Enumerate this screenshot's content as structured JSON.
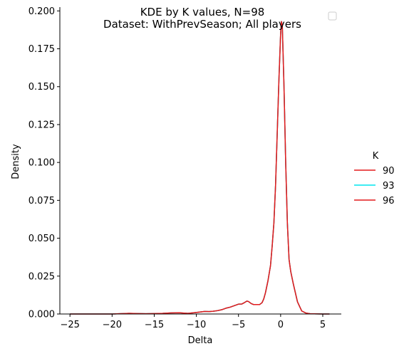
{
  "chart_data": {
    "type": "line",
    "title": "KDE by K values, N=98",
    "subtitle": "Dataset: WithPrevSeason; All players",
    "xlabel": "Delta",
    "ylabel": "Density",
    "xlim": [
      -26.2,
      7.2
    ],
    "ylim": [
      0,
      0.2025
    ],
    "xticks": [
      -25,
      -20,
      -15,
      -10,
      -5,
      0,
      5
    ],
    "yticks": [
      0.0,
      0.025,
      0.05,
      0.075,
      0.1,
      0.125,
      0.15,
      0.175,
      0.2
    ],
    "xtick_labels": [
      "−25",
      "−20",
      "−15",
      "−10",
      "−5",
      "0",
      "5"
    ],
    "ytick_labels": [
      "0.000",
      "0.025",
      "0.050",
      "0.075",
      "0.100",
      "0.125",
      "0.150",
      "0.175",
      "0.200"
    ],
    "grid": false,
    "legend": {
      "title": "K",
      "placement": "outside-right",
      "entries": [
        {
          "label": "90",
          "color": "#e41a1c"
        },
        {
          "label": "93",
          "color": "#00e5ee"
        },
        {
          "label": "96",
          "color": "#e41a1c"
        }
      ]
    },
    "series": [
      {
        "name": "90",
        "color": "#e41a1c",
        "x": [
          -25,
          -22,
          -20,
          -18,
          -16,
          -14,
          -13,
          -12,
          -11,
          -10,
          -9,
          -8.5,
          -8,
          -7.5,
          -7,
          -6.5,
          -6,
          -5.5,
          -5,
          -4.6,
          -4.3,
          -4.0,
          -3.8,
          -3.5,
          -3.2,
          -3.0,
          -2.8,
          -2.5,
          -2.2,
          -2.0,
          -1.8,
          -1.5,
          -1.2,
          -1.0,
          -0.8,
          -0.6,
          -0.4,
          -0.2,
          0.0,
          0.1,
          0.2,
          0.3,
          0.4,
          0.6,
          0.8,
          1.0,
          1.2,
          1.5,
          2.0,
          2.5,
          3.0,
          3.5,
          4.0,
          5.0,
          5.8
        ],
        "y": [
          0.0,
          0.0,
          0.0,
          0.0004,
          0.0002,
          0.0004,
          0.0007,
          0.0008,
          0.0004,
          0.001,
          0.0017,
          0.0016,
          0.0018,
          0.0022,
          0.0028,
          0.0038,
          0.0045,
          0.0055,
          0.0065,
          0.0066,
          0.0075,
          0.0085,
          0.0082,
          0.0069,
          0.0062,
          0.0062,
          0.0062,
          0.0062,
          0.0075,
          0.01,
          0.014,
          0.022,
          0.032,
          0.045,
          0.06,
          0.085,
          0.12,
          0.155,
          0.185,
          0.193,
          0.19,
          0.17,
          0.15,
          0.1,
          0.06,
          0.036,
          0.028,
          0.02,
          0.008,
          0.002,
          0.0006,
          0.0002,
          0.0001,
          0.0,
          0.0
        ]
      },
      {
        "name": "93",
        "color": "#00e5ee",
        "x": [
          -25,
          -22,
          -20,
          -18,
          -16,
          -14,
          -13,
          -12,
          -11,
          -10,
          -9,
          -8.5,
          -8,
          -7.5,
          -7,
          -6.5,
          -6,
          -5.5,
          -5,
          -4.6,
          -4.3,
          -4.0,
          -3.8,
          -3.5,
          -3.2,
          -3.0,
          -2.8,
          -2.5,
          -2.2,
          -2.0,
          -1.8,
          -1.5,
          -1.2,
          -1.0,
          -0.8,
          -0.6,
          -0.4,
          -0.2,
          0.0,
          0.1,
          0.2,
          0.3,
          0.4,
          0.6,
          0.8,
          1.0,
          1.2,
          1.5,
          2.0,
          2.5,
          3.0,
          3.5,
          4.0,
          5.0,
          5.8
        ],
        "y": [
          0.0,
          0.0,
          0.0,
          0.0004,
          0.0002,
          0.0004,
          0.0007,
          0.0008,
          0.0004,
          0.001,
          0.0017,
          0.0016,
          0.0018,
          0.0022,
          0.0028,
          0.0038,
          0.0045,
          0.0055,
          0.0065,
          0.0066,
          0.0075,
          0.0085,
          0.0082,
          0.0069,
          0.0062,
          0.0062,
          0.0062,
          0.0062,
          0.0075,
          0.01,
          0.014,
          0.022,
          0.032,
          0.045,
          0.06,
          0.085,
          0.12,
          0.155,
          0.185,
          0.193,
          0.19,
          0.17,
          0.15,
          0.1,
          0.06,
          0.036,
          0.028,
          0.02,
          0.008,
          0.002,
          0.0006,
          0.0002,
          0.0001,
          0.0,
          0.0
        ]
      },
      {
        "name": "96",
        "color": "#e41a1c",
        "x": [
          -25,
          -22,
          -20,
          -18,
          -16,
          -14,
          -13,
          -12,
          -11,
          -10,
          -9,
          -8.5,
          -8,
          -7.5,
          -7,
          -6.5,
          -6,
          -5.5,
          -5,
          -4.6,
          -4.3,
          -4.0,
          -3.8,
          -3.5,
          -3.2,
          -3.0,
          -2.8,
          -2.5,
          -2.2,
          -2.0,
          -1.8,
          -1.5,
          -1.2,
          -1.0,
          -0.8,
          -0.6,
          -0.4,
          -0.2,
          0.0,
          0.1,
          0.2,
          0.3,
          0.4,
          0.6,
          0.8,
          1.0,
          1.2,
          1.5,
          2.0,
          2.5,
          3.0,
          3.5,
          4.0,
          5.0,
          5.8
        ],
        "y": [
          0.0,
          0.0,
          0.0,
          0.0004,
          0.0002,
          0.0004,
          0.0007,
          0.0008,
          0.0004,
          0.001,
          0.0017,
          0.0016,
          0.0018,
          0.0022,
          0.0028,
          0.0038,
          0.0045,
          0.0055,
          0.0065,
          0.0066,
          0.0075,
          0.0085,
          0.0082,
          0.0069,
          0.0062,
          0.0062,
          0.0062,
          0.0062,
          0.0075,
          0.01,
          0.014,
          0.022,
          0.032,
          0.045,
          0.06,
          0.085,
          0.12,
          0.155,
          0.185,
          0.193,
          0.19,
          0.17,
          0.15,
          0.1,
          0.06,
          0.036,
          0.028,
          0.02,
          0.008,
          0.002,
          0.0006,
          0.0002,
          0.0001,
          0.0,
          0.0
        ]
      }
    ]
  }
}
